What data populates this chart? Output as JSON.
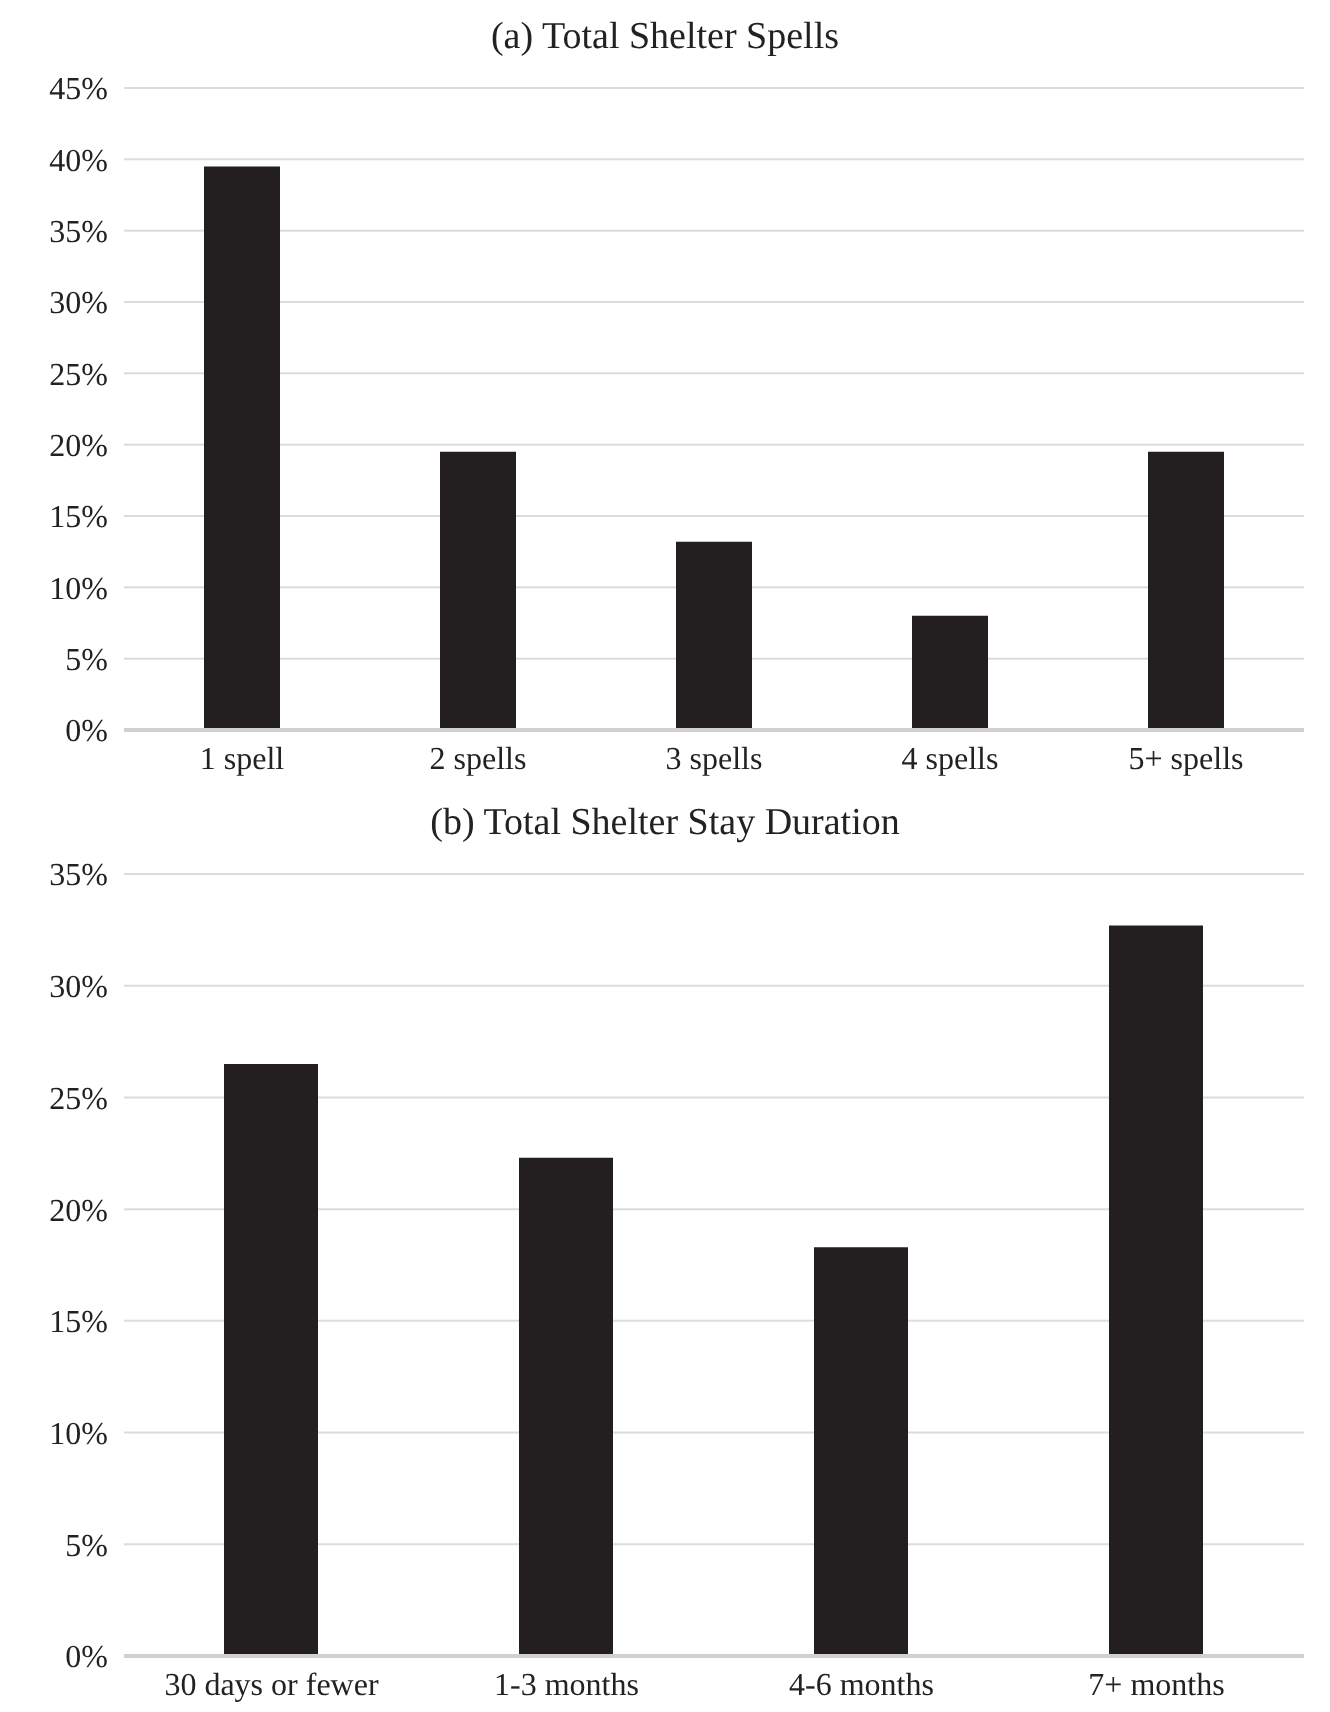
{
  "chart_data": [
    {
      "type": "bar",
      "title": "(a) Total Shelter Spells",
      "categories": [
        "1 spell",
        "2 spells",
        "3 spells",
        "4 spells",
        "5+ spells"
      ],
      "values": [
        39.5,
        19.5,
        13.2,
        8.0,
        19.5
      ],
      "color": "#231f20",
      "ylim": [
        0,
        45
      ],
      "yticks": [
        {
          "value": 0,
          "label": "0%"
        },
        {
          "value": 5,
          "label": "5%"
        },
        {
          "value": 10,
          "label": "10%"
        },
        {
          "value": 15,
          "label": "15%"
        },
        {
          "value": 20,
          "label": "20%"
        },
        {
          "value": 25,
          "label": "25%"
        },
        {
          "value": 30,
          "label": "30%"
        },
        {
          "value": 35,
          "label": "35%"
        },
        {
          "value": 40,
          "label": "40%"
        },
        {
          "value": 45,
          "label": "45%"
        }
      ],
      "grid": "y"
    },
    {
      "type": "bar",
      "title": "(b) Total Shelter Stay Duration",
      "categories": [
        "30 days or fewer",
        "1-3 months",
        "4-6 months",
        "7+ months"
      ],
      "values": [
        26.5,
        22.3,
        18.3,
        32.7
      ],
      "color": "#231f20",
      "ylim": [
        0,
        35
      ],
      "yticks": [
        {
          "value": 0,
          "label": "0%"
        },
        {
          "value": 5,
          "label": "5%"
        },
        {
          "value": 10,
          "label": "10%"
        },
        {
          "value": 15,
          "label": "15%"
        },
        {
          "value": 20,
          "label": "20%"
        },
        {
          "value": 25,
          "label": "25%"
        },
        {
          "value": 30,
          "label": "30%"
        },
        {
          "value": 35,
          "label": "35%"
        }
      ],
      "grid": "y"
    }
  ]
}
